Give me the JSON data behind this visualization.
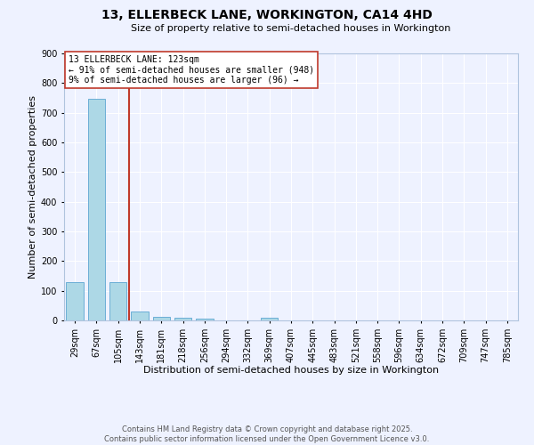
{
  "title": "13, ELLERBECK LANE, WORKINGTON, CA14 4HD",
  "subtitle": "Size of property relative to semi-detached houses in Workington",
  "xlabel": "Distribution of semi-detached houses by size in Workington",
  "ylabel": "Number of semi-detached properties",
  "footer_line1": "Contains HM Land Registry data © Crown copyright and database right 2025.",
  "footer_line2": "Contains public sector information licensed under the Open Government Licence v3.0.",
  "annotation_line1": "13 ELLERBECK LANE: 123sqm",
  "annotation_line2": "← 91% of semi-detached houses are smaller (948)",
  "annotation_line3": "9% of semi-detached houses are larger (96) →",
  "property_size_idx": 2,
  "bar_color": "#add8e6",
  "bar_edge_color": "#6baed6",
  "vline_color": "#c0392b",
  "categories": [
    "29sqm",
    "67sqm",
    "105sqm",
    "143sqm",
    "181sqm",
    "218sqm",
    "256sqm",
    "294sqm",
    "332sqm",
    "369sqm",
    "407sqm",
    "445sqm",
    "483sqm",
    "521sqm",
    "558sqm",
    "596sqm",
    "634sqm",
    "672sqm",
    "709sqm",
    "747sqm",
    "785sqm"
  ],
  "values": [
    130,
    748,
    128,
    30,
    12,
    9,
    5,
    0,
    0,
    8,
    0,
    0,
    0,
    0,
    0,
    0,
    0,
    0,
    0,
    0,
    0
  ],
  "ylim": [
    0,
    900
  ],
  "yticks": [
    0,
    100,
    200,
    300,
    400,
    500,
    600,
    700,
    800,
    900
  ],
  "background_color": "#eef2ff",
  "grid_color": "#ffffff",
  "annotation_box_color": "#ffffff",
  "annotation_box_edge": "#c0392b",
  "title_fontsize": 10,
  "subtitle_fontsize": 8,
  "ylabel_fontsize": 8,
  "xlabel_fontsize": 8,
  "tick_fontsize": 7,
  "footer_fontsize": 6,
  "annotation_fontsize": 7
}
